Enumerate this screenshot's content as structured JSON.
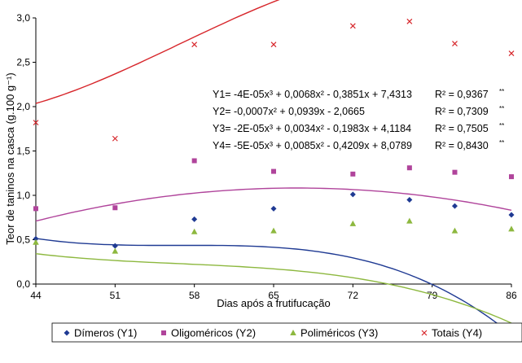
{
  "chart_data": {
    "type": "scatter",
    "xlabel": "Dias após a frutifucação",
    "ylabel": "Teor de taninos na casca (g.100 g⁻¹)",
    "xlim": [
      44,
      86
    ],
    "ylim": [
      0,
      3
    ],
    "x_ticks": [
      "44",
      "51",
      "58",
      "65",
      "72",
      "79",
      "86"
    ],
    "y_ticks": [
      "0,0",
      "0,5",
      "1,0",
      "1,5",
      "2,0",
      "2,5",
      "3,0"
    ],
    "grid": false,
    "legend_position": "bottom",
    "series": [
      {
        "name": "Dímeros (Y1)",
        "marker": "diamond",
        "color": "#1f3a93",
        "x": [
          44,
          51,
          58,
          65,
          72,
          77,
          81,
          86
        ],
        "y": [
          0.51,
          0.43,
          0.73,
          0.85,
          1.01,
          0.95,
          0.88,
          0.78
        ],
        "fit": [
          -4e-05,
          0.0068,
          -0.3851,
          7.4313
        ]
      },
      {
        "name": "Oligoméricos (Y2)",
        "marker": "square",
        "color": "#b0449b",
        "x": [
          44,
          51,
          58,
          65,
          72,
          77,
          81,
          86
        ],
        "y": [
          0.85,
          0.86,
          1.39,
          1.27,
          1.24,
          1.31,
          1.26,
          1.21
        ],
        "fit": [
          0,
          -0.0007,
          0.0939,
          -2.0665
        ]
      },
      {
        "name": "Poliméricos (Y3)",
        "marker": "triangle",
        "color": "#8db83f",
        "x": [
          44,
          51,
          58,
          65,
          72,
          77,
          81,
          86
        ],
        "y": [
          0.47,
          0.37,
          0.59,
          0.6,
          0.68,
          0.71,
          0.6,
          0.62
        ],
        "fit": [
          -2e-05,
          0.0034,
          -0.1983,
          4.1184
        ]
      },
      {
        "name": "Totais (Y4)",
        "marker": "x",
        "color": "#d7262b",
        "x": [
          44,
          51,
          58,
          65,
          72,
          77,
          81,
          86
        ],
        "y": [
          1.82,
          1.64,
          2.7,
          2.7,
          2.91,
          2.96,
          2.71,
          2.6
        ],
        "fit": [
          -5e-05,
          0.0085,
          -0.4209,
          8.0789
        ]
      }
    ],
    "equations": [
      {
        "eq": "Y1= -4E-05x³ + 0,0068x² - 0,3851x + 7,4313",
        "r2": "R² = 0,9367",
        "sig": "**"
      },
      {
        "eq": "Y2= -0,0007x² + 0,0939x - 2,0665",
        "r2": "R² = 0,7309",
        "sig": "**"
      },
      {
        "eq": "Y3= -2E-05x³ + 0,0034x² - 0,1983x + 4,1184",
        "r2": "R² = 0,7505",
        "sig": "**"
      },
      {
        "eq": "Y4= -5E-05x³ + 0,0085x² - 0,4209x + 8,0789",
        "r2": "R² = 0,8430",
        "sig": "**"
      }
    ]
  }
}
